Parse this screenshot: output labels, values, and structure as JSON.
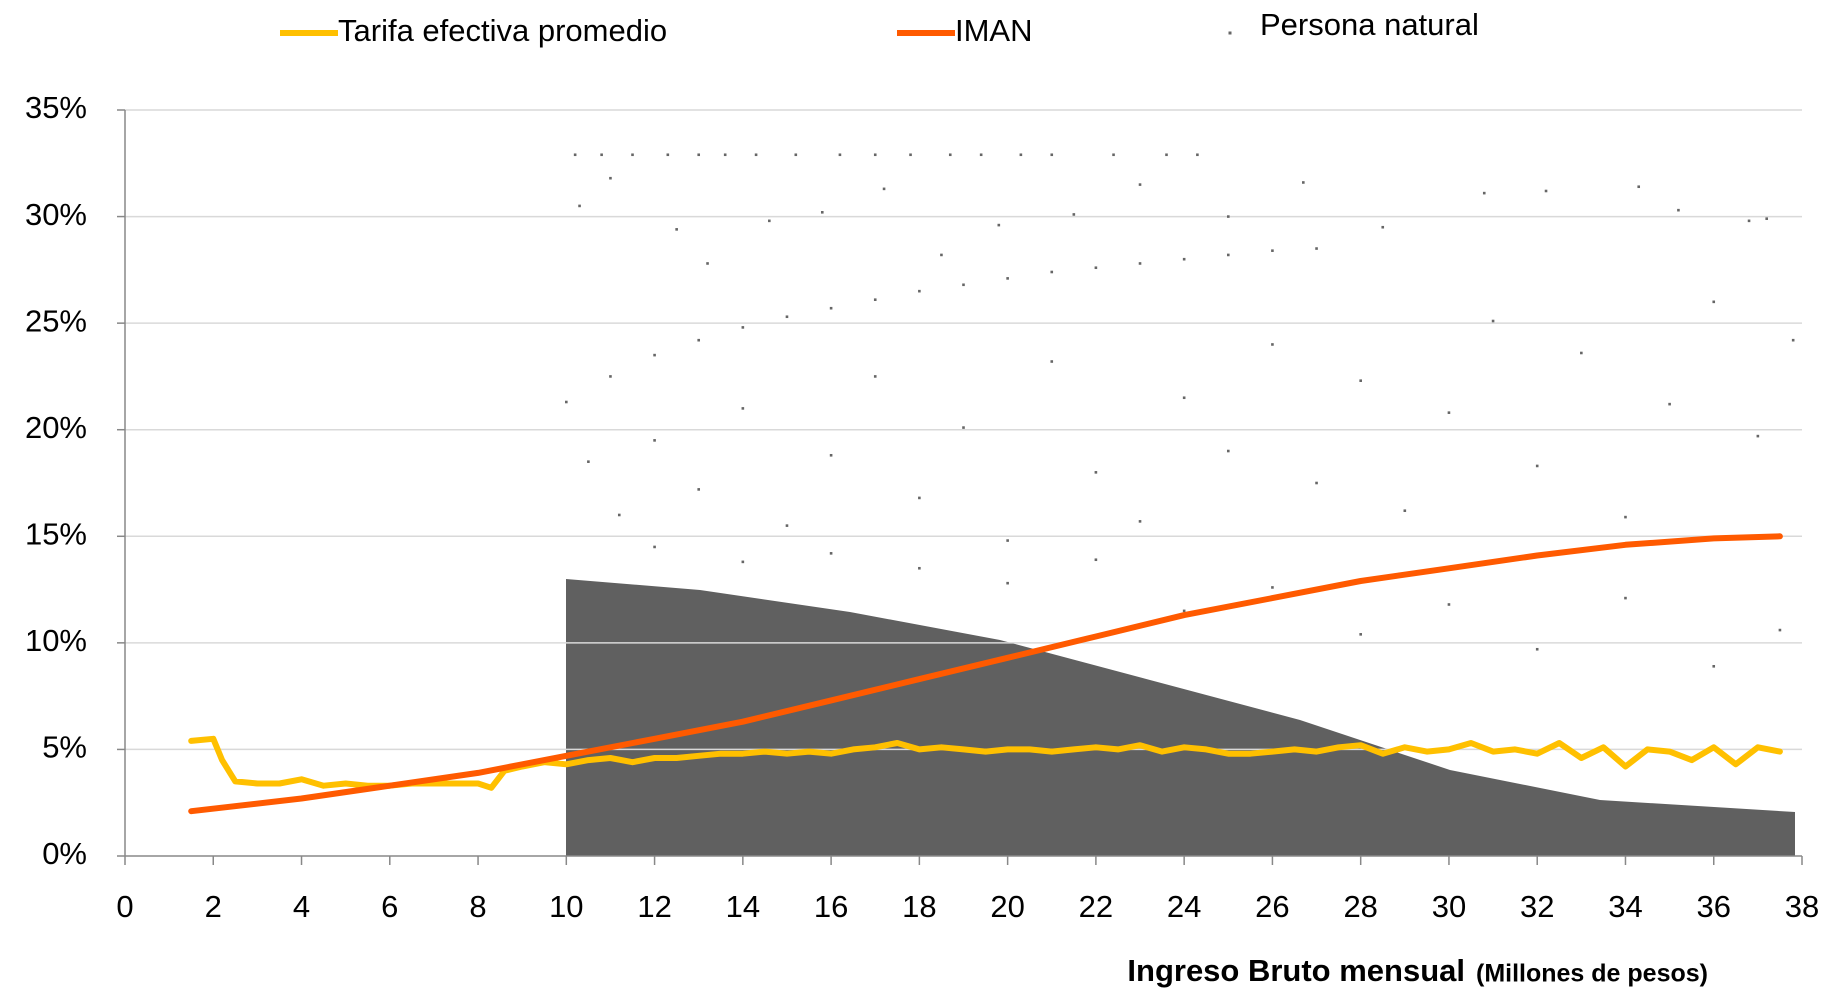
{
  "chart_data": {
    "type": "line",
    "xlabel": "Ingreso Bruto mensual",
    "xlabel_unit": "(Millones de pesos)",
    "xlim": [
      0,
      38
    ],
    "xticks": [
      0,
      2,
      4,
      6,
      8,
      10,
      12,
      14,
      16,
      18,
      20,
      22,
      24,
      26,
      28,
      30,
      32,
      34,
      36,
      38
    ],
    "ylim": [
      0,
      35
    ],
    "yticks": [
      {
        "value": 0,
        "label": "0%"
      },
      {
        "value": 5,
        "label": "5%"
      },
      {
        "value": 10,
        "label": "10%"
      },
      {
        "value": 15,
        "label": "15%"
      },
      {
        "value": 20,
        "label": "20%"
      },
      {
        "value": 25,
        "label": "25%"
      },
      {
        "value": 30,
        "label": "30%"
      },
      {
        "value": 35,
        "label": "35%"
      }
    ],
    "grid": true,
    "legend": "top",
    "series": [
      {
        "name": "Tarifa efectiva promedio",
        "type": "line",
        "color": "#ffc000",
        "x": [
          1.5,
          2,
          2.2,
          2.5,
          3,
          3.5,
          4,
          4.5,
          5,
          5.5,
          6,
          6.5,
          7,
          7.5,
          8,
          8.3,
          8.6,
          9,
          9.5,
          10,
          10.5,
          11,
          11.5,
          12,
          12.5,
          13,
          13.5,
          14,
          14.5,
          15,
          15.5,
          16,
          16.5,
          17,
          17.5,
          18,
          18.5,
          19,
          19.5,
          20,
          20.5,
          21,
          21.5,
          22,
          22.5,
          23,
          23.5,
          24,
          24.5,
          25,
          25.5,
          26,
          26.5,
          27,
          27.5,
          28,
          28.5,
          29,
          29.5,
          30,
          30.5,
          31,
          31.5,
          32,
          32.5,
          33,
          33.5,
          34,
          34.5,
          35,
          35.5,
          36,
          36.5,
          37,
          37.5
        ],
        "values": [
          5.4,
          5.5,
          4.5,
          3.5,
          3.4,
          3.4,
          3.6,
          3.3,
          3.4,
          3.3,
          3.3,
          3.4,
          3.4,
          3.4,
          3.4,
          3.2,
          4.0,
          4.2,
          4.4,
          4.3,
          4.5,
          4.6,
          4.4,
          4.6,
          4.6,
          4.7,
          4.8,
          4.8,
          4.9,
          4.8,
          4.9,
          4.8,
          5.0,
          5.1,
          5.3,
          5.0,
          5.1,
          5.0,
          4.9,
          5.0,
          5.0,
          4.9,
          5.0,
          5.1,
          5.0,
          5.2,
          4.9,
          5.1,
          5.0,
          4.8,
          4.8,
          4.9,
          5.0,
          4.9,
          5.1,
          5.2,
          4.8,
          5.1,
          4.9,
          5.0,
          5.3,
          4.9,
          5.0,
          4.8,
          5.3,
          4.6,
          5.1,
          4.2,
          5.0,
          4.9,
          4.5,
          5.1,
          4.3,
          5.1,
          4.9
        ]
      },
      {
        "name": "IMAN",
        "type": "line",
        "color": "#ff5a00",
        "x": [
          1.5,
          4,
          6,
          8,
          10,
          12,
          14,
          16,
          18,
          20,
          22,
          24,
          26,
          28,
          30,
          32,
          34,
          36,
          37.5
        ],
        "values": [
          2.1,
          2.7,
          3.3,
          3.9,
          4.7,
          5.5,
          6.3,
          7.3,
          8.3,
          9.3,
          10.3,
          11.3,
          12.1,
          12.9,
          13.5,
          14.1,
          14.6,
          14.9,
          15.0
        ]
      },
      {
        "name": "Persona natural",
        "type": "scatter",
        "color": "#666666",
        "x": [
          10,
          11,
          12,
          13,
          14,
          15,
          16,
          17,
          18,
          19,
          20,
          21,
          22,
          23,
          24,
          25,
          26,
          27,
          10.2,
          10.8,
          11.5,
          12.3,
          13.0,
          13.6,
          14.3,
          15.2,
          16.2,
          17.0,
          17.8,
          18.7,
          19.4,
          20.3,
          21.0,
          22.4,
          23.6,
          24.3,
          10.3,
          11,
          12.5,
          13.2,
          14.6,
          15.8,
          17.2,
          18.5,
          19.8,
          21.5,
          23,
          25,
          26.7,
          28.5,
          30.8,
          32.2,
          34.3,
          35.2,
          36.8,
          37.2,
          10.5,
          11.2,
          12,
          13,
          14,
          15,
          16,
          17,
          18,
          19,
          20,
          21,
          22,
          23,
          24,
          25,
          26,
          27,
          28,
          29,
          30,
          31,
          32,
          33,
          34,
          35,
          36,
          37,
          37.8,
          12,
          14,
          16,
          18,
          20,
          22,
          24,
          26,
          28,
          30,
          32,
          34,
          36,
          37.5
        ],
        "values": [
          21.3,
          22.5,
          23.5,
          24.2,
          24.8,
          25.3,
          25.7,
          26.1,
          26.5,
          26.8,
          27.1,
          27.4,
          27.6,
          27.8,
          28.0,
          28.2,
          28.4,
          28.5,
          32.9,
          32.9,
          32.9,
          32.9,
          32.9,
          32.9,
          32.9,
          32.9,
          32.9,
          32.9,
          32.9,
          32.9,
          32.9,
          32.9,
          32.9,
          32.9,
          32.9,
          32.9,
          30.5,
          31.8,
          29.4,
          27.8,
          29.8,
          30.2,
          31.3,
          28.2,
          29.6,
          30.1,
          31.5,
          30.0,
          31.6,
          29.5,
          31.1,
          31.2,
          31.4,
          30.3,
          29.8,
          29.9,
          18.5,
          16.0,
          19.5,
          17.2,
          21.0,
          15.5,
          18.8,
          22.5,
          16.8,
          20.1,
          14.8,
          23.2,
          18.0,
          15.7,
          21.5,
          19.0,
          24.0,
          17.5,
          22.3,
          16.2,
          20.8,
          25.1,
          18.3,
          23.6,
          15.9,
          21.2,
          26.0,
          19.7,
          24.2,
          14.5,
          13.8,
          14.2,
          13.5,
          12.8,
          13.9,
          11.5,
          12.6,
          10.4,
          11.8,
          9.7,
          12.1,
          8.9,
          10.6
        ]
      }
    ]
  }
}
